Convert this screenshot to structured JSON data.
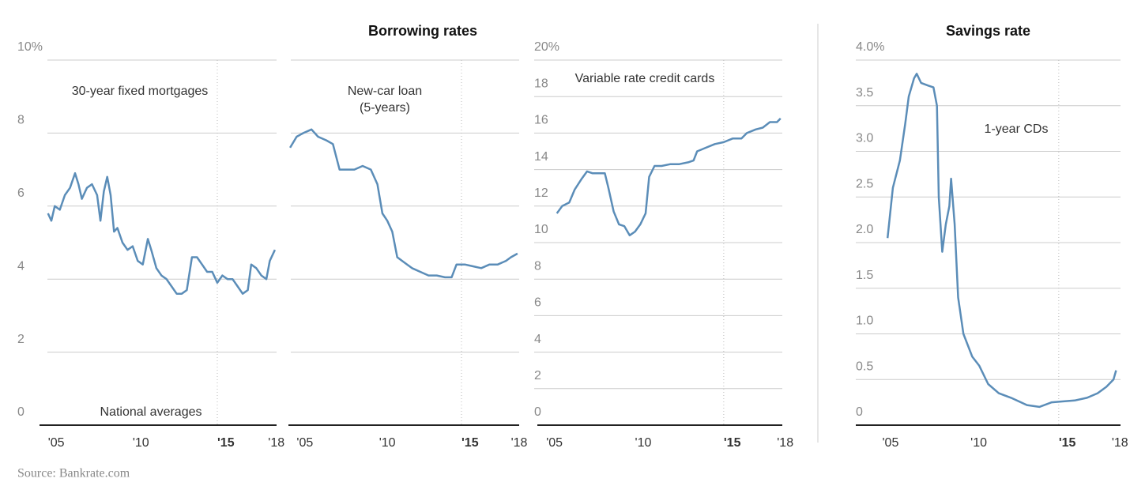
{
  "group_title": "Borrowing rates",
  "source": "Source: Bankrate.com",
  "chart_data": [
    {
      "type": "line",
      "annotations": [
        "30-year fixed mortgages",
        "National averages"
      ],
      "color": "#5b8db8",
      "x": [
        2005.0,
        2005.2,
        2005.4,
        2005.7,
        2006.0,
        2006.3,
        2006.6,
        2006.8,
        2007.0,
        2007.3,
        2007.6,
        2007.9,
        2008.1,
        2008.3,
        2008.5,
        2008.7,
        2008.9,
        2009.1,
        2009.4,
        2009.7,
        2010.0,
        2010.3,
        2010.6,
        2010.9,
        2011.1,
        2011.4,
        2011.7,
        2012.0,
        2012.3,
        2012.6,
        2012.9,
        2013.2,
        2013.5,
        2013.8,
        2014.1,
        2014.4,
        2014.7,
        2015.0,
        2015.3,
        2015.6,
        2015.9,
        2016.2,
        2016.5,
        2016.8,
        2017.0,
        2017.3,
        2017.6,
        2017.9,
        2018.1,
        2018.4
      ],
      "values": [
        5.8,
        5.6,
        6.0,
        5.9,
        6.3,
        6.5,
        6.9,
        6.6,
        6.2,
        6.5,
        6.6,
        6.3,
        5.6,
        6.4,
        6.8,
        6.3,
        5.3,
        5.4,
        5.0,
        4.8,
        4.9,
        4.5,
        4.4,
        5.1,
        4.8,
        4.3,
        4.1,
        4.0,
        3.8,
        3.6,
        3.6,
        3.7,
        4.6,
        4.6,
        4.4,
        4.2,
        4.2,
        3.9,
        4.1,
        4.0,
        4.0,
        3.8,
        3.6,
        3.7,
        4.4,
        4.3,
        4.1,
        4.0,
        4.5,
        4.8
      ],
      "xlim": [
        2004.5,
        2018.5
      ],
      "ylim": [
        0,
        10
      ],
      "xticks": [
        {
          "value": 2005,
          "label": "'05"
        },
        {
          "value": 2010,
          "label": "'10"
        },
        {
          "value": 2015,
          "label": "'15"
        },
        {
          "value": 2018,
          "label": "'18"
        }
      ],
      "yticks": [
        0,
        2,
        4,
        6,
        8,
        {
          "value": 10,
          "label": "10%"
        }
      ],
      "grid": true,
      "marker_x": 2015
    },
    {
      "type": "line",
      "annotations": [
        "New-car loan",
        "(5-years)"
      ],
      "color": "#5b8db8",
      "x": [
        2004.6,
        2005.0,
        2005.4,
        2005.9,
        2006.3,
        2006.8,
        2007.2,
        2007.6,
        2008.0,
        2008.5,
        2009.0,
        2009.5,
        2009.9,
        2010.2,
        2010.5,
        2010.8,
        2011.1,
        2011.4,
        2011.7,
        2012.0,
        2012.5,
        2013.0,
        2013.5,
        2014.0,
        2014.4,
        2014.7,
        2015.2,
        2015.7,
        2016.2,
        2016.7,
        2017.2,
        2017.7,
        2018.0,
        2018.4
      ],
      "values": [
        7.6,
        7.9,
        8.0,
        8.1,
        7.9,
        7.8,
        7.7,
        7.0,
        7.0,
        7.0,
        7.1,
        7.0,
        6.6,
        5.8,
        5.6,
        5.3,
        4.6,
        4.5,
        4.4,
        4.3,
        4.2,
        4.1,
        4.1,
        4.05,
        4.05,
        4.4,
        4.4,
        4.35,
        4.3,
        4.4,
        4.4,
        4.5,
        4.6,
        4.7
      ],
      "xlim": [
        2004.5,
        2018.5
      ],
      "ylim": [
        0,
        10
      ],
      "xticks": [
        {
          "value": 2005,
          "label": "'05"
        },
        {
          "value": 2010,
          "label": "'10"
        },
        {
          "value": 2015,
          "label": "'15"
        },
        {
          "value": 2018,
          "label": "'18"
        }
      ],
      "gridlines": [
        0,
        2,
        4,
        6,
        8,
        10
      ],
      "grid": true,
      "marker_x": 2015
    },
    {
      "type": "line",
      "annotations": [
        "Variable rate credit cards"
      ],
      "color": "#5b8db8",
      "x": [
        2005.6,
        2005.9,
        2006.3,
        2006.6,
        2007.0,
        2007.3,
        2007.6,
        2008.0,
        2008.3,
        2008.5,
        2008.8,
        2009.1,
        2009.4,
        2009.7,
        2010.0,
        2010.3,
        2010.6,
        2010.8,
        2011.1,
        2011.5,
        2012.0,
        2012.5,
        2013.0,
        2013.3,
        2013.5,
        2014.0,
        2014.5,
        2015.0,
        2015.5,
        2016.0,
        2016.3,
        2016.8,
        2017.2,
        2017.6,
        2018.0,
        2018.2
      ],
      "values": [
        11.6,
        12.0,
        12.2,
        12.9,
        13.5,
        13.9,
        13.8,
        13.8,
        13.8,
        13.0,
        11.7,
        11.0,
        10.9,
        10.4,
        10.6,
        11.0,
        11.6,
        13.6,
        14.2,
        14.2,
        14.3,
        14.3,
        14.4,
        14.5,
        15.0,
        15.2,
        15.4,
        15.5,
        15.7,
        15.7,
        16.0,
        16.2,
        16.3,
        16.6,
        16.6,
        16.8
      ],
      "xlim": [
        2004.5,
        2018.3
      ],
      "ylim": [
        0,
        20
      ],
      "xticks": [
        {
          "value": 2005,
          "label": "'05"
        },
        {
          "value": 2010,
          "label": "'10"
        },
        {
          "value": 2015,
          "label": "'15"
        },
        {
          "value": 2018,
          "label": "'18"
        }
      ],
      "yticks": [
        0,
        2,
        4,
        6,
        8,
        10,
        12,
        14,
        16,
        18,
        {
          "value": 20,
          "label": "20%"
        }
      ],
      "grid": true,
      "marker_x": 2015
    },
    {
      "type": "line",
      "title": "Savings rate",
      "annotations": [
        "1-year CDs"
      ],
      "color": "#5b8db8",
      "x": [
        2005.3,
        2005.6,
        2006.0,
        2006.3,
        2006.5,
        2006.8,
        2006.95,
        2007.2,
        2007.6,
        2007.9,
        2008.1,
        2008.2,
        2008.3,
        2008.4,
        2008.6,
        2008.8,
        2008.9,
        2009.1,
        2009.3,
        2009.6,
        2010.1,
        2010.5,
        2011.0,
        2011.6,
        2012.3,
        2013.2,
        2013.9,
        2014.6,
        2015.2,
        2015.9,
        2016.6,
        2017.2,
        2017.7,
        2018.1,
        2018.25
      ],
      "values": [
        2.05,
        2.6,
        2.9,
        3.3,
        3.6,
        3.8,
        3.85,
        3.75,
        3.72,
        3.7,
        3.5,
        2.5,
        2.2,
        1.9,
        2.2,
        2.4,
        2.7,
        2.2,
        1.4,
        1.0,
        0.75,
        0.65,
        0.45,
        0.35,
        0.3,
        0.22,
        0.2,
        0.25,
        0.26,
        0.27,
        0.3,
        0.35,
        0.42,
        0.5,
        0.6
      ],
      "xlim": [
        2003.5,
        2018.5
      ],
      "ylim": [
        0,
        4
      ],
      "xticks": [
        {
          "value": 2005,
          "label": "'05"
        },
        {
          "value": 2010,
          "label": "'10"
        },
        {
          "value": 2015,
          "label": "'15"
        },
        {
          "value": 2018,
          "label": "'18"
        }
      ],
      "yticks": [
        0,
        0.5,
        {
          "value": 1,
          "label": "1.0"
        },
        1.5,
        {
          "value": 2,
          "label": "2.0"
        },
        2.5,
        {
          "value": 3,
          "label": "3.0"
        },
        3.5,
        {
          "value": 4,
          "label": "4.0%"
        }
      ],
      "grid": true,
      "marker_x": 2015
    }
  ]
}
